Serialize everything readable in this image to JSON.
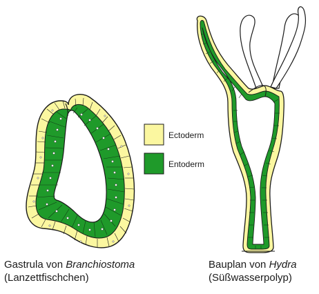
{
  "legend": {
    "ectoderm": {
      "label": "Ectoderm",
      "color": "#fbf7a0"
    },
    "entoderm": {
      "label": "Entoderm",
      "color": "#1f9a2a"
    }
  },
  "captions": {
    "left": {
      "line1_prefix": "Gastrula von ",
      "line1_italic": "Branchiostoma",
      "line2": "(Lanzettfischchen)"
    },
    "right": {
      "line1_prefix": "Bauplan von ",
      "line1_italic": "Hydra",
      "line2": "(Süßwasserpolyp)"
    }
  },
  "colors": {
    "outline": "#1a1a1a",
    "ectoderm": "#fbf7a0",
    "entoderm": "#1f9a2a",
    "nucleus": "#ffffff"
  }
}
